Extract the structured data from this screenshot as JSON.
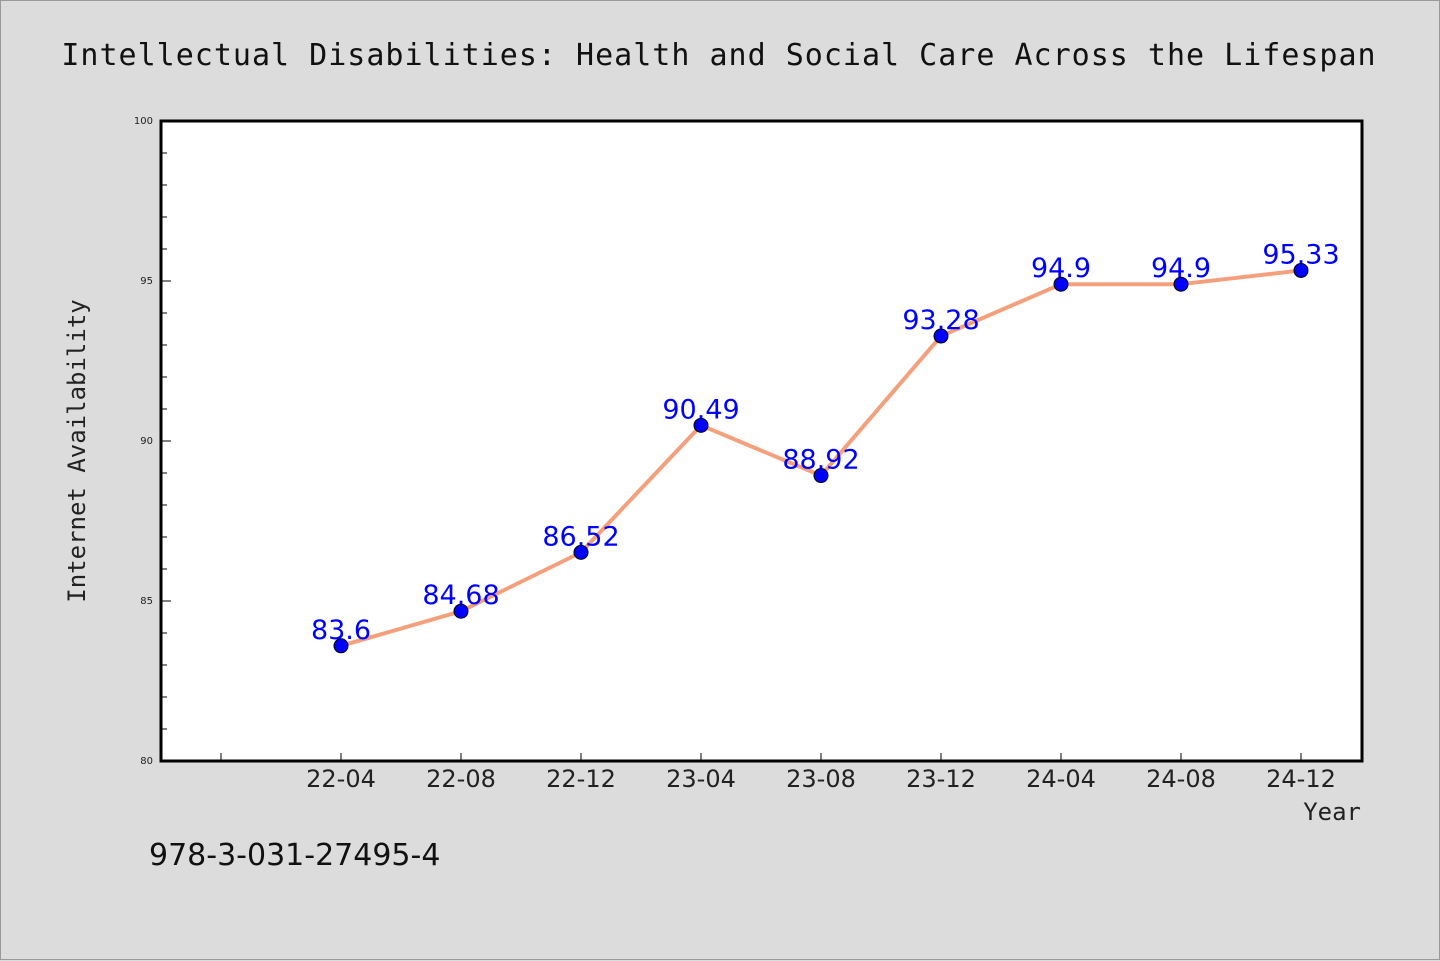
{
  "chart_data": {
    "type": "line",
    "title": "Intellectual Disabilities: Health and Social Care Across the Lifespan",
    "xlabel": "Year",
    "ylabel": "Internet Availability",
    "categories": [
      "22-04",
      "22-08",
      "22-12",
      "23-04",
      "23-08",
      "23-12",
      "24-04",
      "24-08",
      "24-12"
    ],
    "series": [
      {
        "values": [
          83.6,
          84.68,
          86.52,
          90.49,
          88.92,
          93.28,
          94.9,
          94.9,
          95.33
        ]
      }
    ],
    "data_labels": [
      "83.6",
      "84.68",
      "86.52",
      "90.49",
      "88.92",
      "93.28",
      "94.9",
      "94.9",
      "95.33"
    ],
    "ylim": [
      80,
      100
    ],
    "y_ticks": [
      80,
      85,
      90,
      95,
      100
    ],
    "grid": false,
    "line_color": "#f4a07c",
    "marker_color": "#0000ff",
    "label_color": "#0000ff"
  },
  "caption": "978-3-031-27495-4"
}
